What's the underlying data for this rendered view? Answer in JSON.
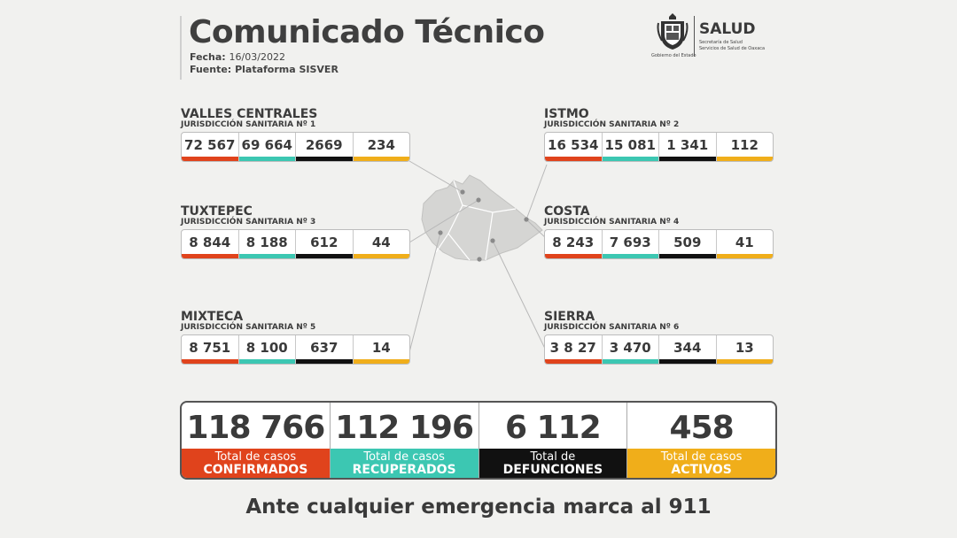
{
  "header": {
    "title": "Comunicado Técnico",
    "date_label": "Fecha:",
    "date_value": "16/03/2022",
    "source_label": "Fuente:",
    "source_value": "Plataforma SISVER"
  },
  "logo": {
    "gov_text": "Gobierno del Estado",
    "name": "SALUD",
    "sub1": "Secretaría de Salud",
    "sub2": "Servicios de Salud de Oaxaca"
  },
  "regions": [
    {
      "name": "VALLES CENTRALES",
      "sub": "JURISDICCIÓN SANITARIA Nº 1",
      "values": [
        "72 567",
        "69 664",
        "2669",
        "234"
      ]
    },
    {
      "name": "ISTMO",
      "sub": "JURISDICCIÓN SANITARIA Nº 2",
      "values": [
        "16 534",
        "15 081",
        "1 341",
        "112"
      ]
    },
    {
      "name": "TUXTEPEC",
      "sub": "JURISDICCIÓN SANITARIA Nº 3",
      "values": [
        "8 844",
        "8 188",
        "612",
        "44"
      ]
    },
    {
      "name": "COSTA",
      "sub": "JURISDICCIÓN SANITARIA Nº 4",
      "values": [
        "8 243",
        "7 693",
        "509",
        "41"
      ]
    },
    {
      "name": "MIXTECA",
      "sub": "JURISDICCIÓN SANITARIA Nº 5",
      "values": [
        "8 751",
        "8 100",
        "637",
        "14"
      ]
    },
    {
      "name": "SIERRA",
      "sub": "JURISDICCIÓN SANITARIA Nº 6",
      "values": [
        "3 8 27",
        "3 470",
        "344",
        "13"
      ]
    }
  ],
  "totals": [
    {
      "value": "118 766",
      "line1": "Total de casos",
      "line2": "CONFIRMADOS",
      "color": "#e0431c"
    },
    {
      "value": "112 196",
      "line1": "Total de casos",
      "line2": "RECUPERADOS",
      "color": "#3cc7b2"
    },
    {
      "value": "6 112",
      "line1": "Total de",
      "line2": "DEFUNCIONES",
      "color": "#111111"
    },
    {
      "value": "458",
      "line1": "Total de casos",
      "line2": "ACTIVOS",
      "color": "#f0ae1a"
    }
  ],
  "footer": "Ante cualquier emergencia marca al 911"
}
